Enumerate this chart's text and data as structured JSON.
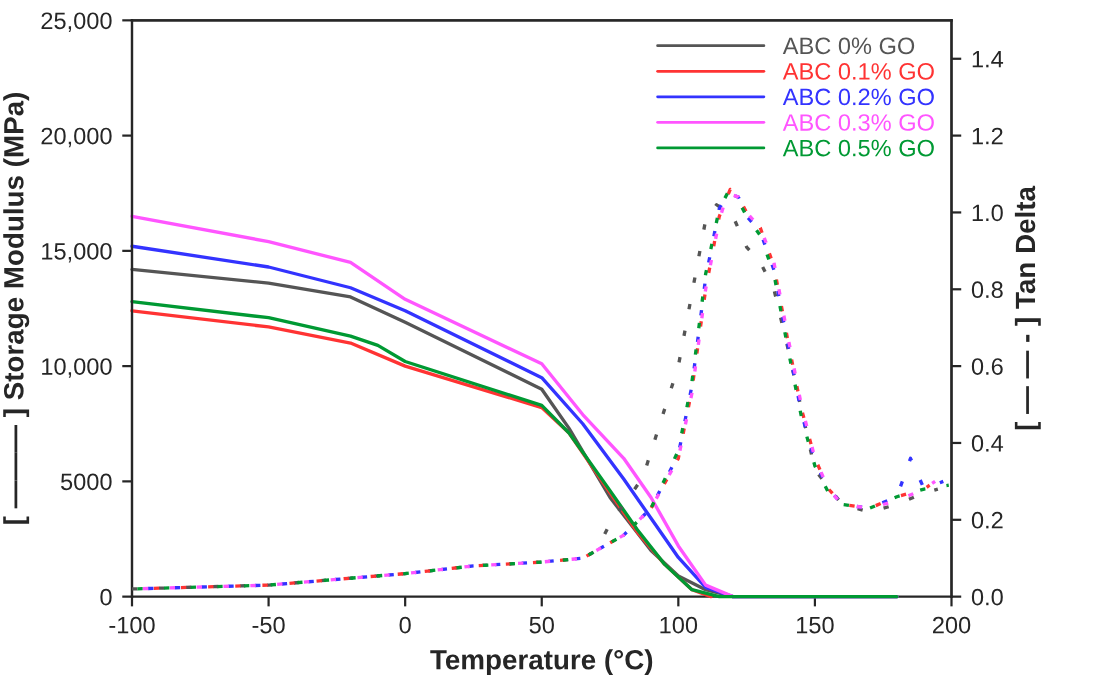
{
  "chart_data": {
    "type": "line",
    "xlabel": "Temperature (°C)",
    "ylabel": "[ ——— ] Storage Modulus (MPa)",
    "y2label": "[ — — - ] Tan Delta",
    "xlim": [
      -100,
      200
    ],
    "xticks": [
      -100,
      -50,
      0,
      50,
      100,
      150,
      200
    ],
    "ylim": [
      0,
      25000
    ],
    "yticks": [
      0,
      5000,
      {
        "value": 10000,
        "label": "10,000"
      },
      {
        "value": 15000,
        "label": "15,000"
      },
      {
        "value": 20000,
        "label": "20,000"
      },
      {
        "value": 25000,
        "label": "25,000"
      }
    ],
    "y2lim": [
      0,
      1.5
    ],
    "y2ticks": [
      {
        "value": 0,
        "label": "0.0"
      },
      {
        "value": 0.2,
        "label": "0.2"
      },
      {
        "value": 0.4,
        "label": "0.4"
      },
      {
        "value": 0.6,
        "label": "0.6"
      },
      {
        "value": 0.8,
        "label": "0.8"
      },
      {
        "value": 1.0,
        "label": "1.0"
      },
      {
        "value": 1.2,
        "label": "1.2"
      },
      {
        "value": 1.4,
        "label": "1.4"
      }
    ],
    "grid": false,
    "legend": "top right",
    "marker": "none",
    "series": [
      {
        "name": "ABC 0% GO",
        "color": "#555555",
        "line_style": "solid",
        "x": [
          -100,
          -50,
          -20,
          0,
          50,
          60,
          75,
          90,
          100,
          110,
          120,
          180
        ],
        "values": [
          14200,
          13600,
          13000,
          11900,
          9000,
          7300,
          4300,
          2000,
          900,
          300,
          0,
          0
        ]
      },
      {
        "name": "ABC 0.1% GO",
        "color": "#ff3333",
        "line_style": "solid",
        "x": [
          -100,
          -50,
          -20,
          0,
          50,
          60,
          75,
          85,
          95,
          105,
          112
        ],
        "values": [
          12400,
          11700,
          11000,
          10000,
          8200,
          7100,
          4500,
          2800,
          1400,
          300,
          0
        ]
      },
      {
        "name": "ABC 0.2% GO",
        "color": "#3333ff",
        "line_style": "solid",
        "x": [
          -100,
          -50,
          -20,
          0,
          50,
          65,
          80,
          90,
          100,
          110,
          120,
          180
        ],
        "values": [
          15200,
          14300,
          13400,
          12400,
          9500,
          7500,
          5100,
          3400,
          1700,
          400,
          0,
          0
        ]
      },
      {
        "name": "ABC 0.3% GO",
        "color": "#ff55ff",
        "line_style": "solid",
        "x": [
          -100,
          -50,
          -20,
          0,
          50,
          65,
          80,
          90,
          100,
          110,
          120,
          180
        ],
        "values": [
          16500,
          15400,
          14500,
          12900,
          10100,
          7900,
          6000,
          4300,
          2200,
          500,
          0,
          0
        ]
      },
      {
        "name": "ABC 0.5% GO",
        "color": "#009933",
        "line_style": "solid",
        "x": [
          -100,
          -50,
          -20,
          -10,
          0,
          50,
          60,
          75,
          85,
          95,
          105,
          115,
          180
        ],
        "values": [
          12800,
          12100,
          11300,
          10900,
          10200,
          8300,
          7100,
          4600,
          2900,
          1400,
          300,
          0,
          0
        ]
      },
      {
        "color": "#555555",
        "line_style": "dashed",
        "axis": "y2",
        "x": [
          -100,
          -50,
          0,
          25,
          50,
          65,
          70,
          75,
          87,
          100,
          110,
          114,
          120,
          125,
          130,
          135,
          140,
          150,
          160,
          170,
          180,
          190,
          195
        ],
        "values": [
          0.02,
          0.03,
          0.06,
          0.08,
          0.09,
          0.1,
          0.12,
          0.19,
          0.31,
          0.6,
          0.98,
          1.02,
          0.99,
          0.91,
          0.87,
          0.8,
          0.65,
          0.33,
          0.24,
          0.22,
          0.24,
          0.27,
          0.28
        ]
      },
      {
        "color": "#ff3333",
        "line_style": "dashed",
        "axis": "y2",
        "x": [
          -100,
          -50,
          0,
          25,
          50,
          65,
          70,
          80,
          90,
          100,
          105,
          110,
          115,
          119,
          122,
          125,
          130,
          135,
          140,
          145,
          150,
          155,
          160,
          170,
          180,
          190,
          192
        ],
        "values": [
          0.02,
          0.03,
          0.06,
          0.08,
          0.09,
          0.1,
          0.12,
          0.16,
          0.23,
          0.36,
          0.54,
          0.8,
          0.99,
          1.06,
          1.04,
          1.0,
          0.96,
          0.86,
          0.67,
          0.49,
          0.36,
          0.28,
          0.24,
          0.23,
          0.26,
          0.28,
          0.29
        ]
      },
      {
        "color": "#3333ff",
        "line_style": "dashed",
        "axis": "y2",
        "x": [
          -100,
          -50,
          0,
          25,
          50,
          65,
          70,
          80,
          90,
          100,
          105,
          110,
          115,
          118,
          122,
          125,
          130,
          135,
          140,
          145,
          150,
          155,
          160,
          170,
          180,
          185,
          190,
          197
        ],
        "values": [
          0.02,
          0.03,
          0.06,
          0.08,
          0.09,
          0.1,
          0.12,
          0.16,
          0.23,
          0.37,
          0.55,
          0.83,
          1.01,
          1.05,
          1.04,
          0.99,
          0.95,
          0.85,
          0.66,
          0.48,
          0.35,
          0.28,
          0.24,
          0.23,
          0.26,
          0.36,
          0.28,
          0.3
        ]
      },
      {
        "color": "#ff55ff",
        "line_style": "dashed",
        "axis": "y2",
        "x": [
          -100,
          -50,
          0,
          25,
          50,
          65,
          70,
          80,
          90,
          100,
          105,
          110,
          115,
          118,
          122,
          125,
          130,
          135,
          140,
          145,
          150,
          155,
          160,
          170,
          180,
          190,
          194
        ],
        "values": [
          0.02,
          0.03,
          0.06,
          0.08,
          0.09,
          0.1,
          0.12,
          0.16,
          0.23,
          0.36,
          0.53,
          0.8,
          0.98,
          1.05,
          1.04,
          1.0,
          0.96,
          0.87,
          0.68,
          0.5,
          0.36,
          0.28,
          0.24,
          0.23,
          0.25,
          0.28,
          0.3
        ]
      },
      {
        "color": "#009933",
        "line_style": "dashed",
        "axis": "y2",
        "x": [
          -100,
          -50,
          0,
          25,
          50,
          65,
          70,
          80,
          90,
          100,
          105,
          110,
          115,
          118,
          122,
          125,
          130,
          135,
          140,
          145,
          150,
          155,
          160,
          170,
          180,
          190,
          199
        ],
        "values": [
          0.02,
          0.03,
          0.06,
          0.08,
          0.09,
          0.1,
          0.12,
          0.16,
          0.23,
          0.38,
          0.56,
          0.84,
          1.01,
          1.05,
          1.03,
          0.99,
          0.94,
          0.84,
          0.65,
          0.47,
          0.34,
          0.27,
          0.24,
          0.23,
          0.26,
          0.28,
          0.29
        ]
      }
    ]
  }
}
